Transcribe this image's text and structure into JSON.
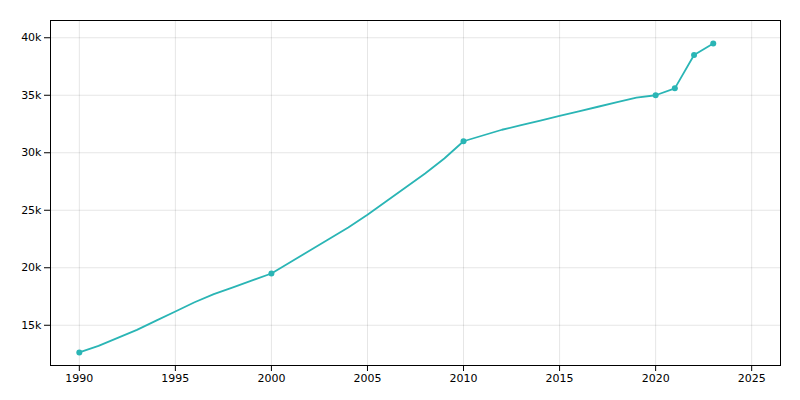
{
  "chart_data": {
    "type": "line",
    "series": [
      {
        "type": "line",
        "color": "#2ab5b5",
        "x": [
          1990,
          1991,
          1992,
          1993,
          1994,
          1995,
          1996,
          1997,
          1998,
          1999,
          2000,
          2001,
          2002,
          2003,
          2004,
          2005,
          2006,
          2007,
          2008,
          2009,
          2010,
          2011,
          2012,
          2013,
          2014,
          2015,
          2016,
          2017,
          2018,
          2019,
          2020,
          2021,
          2022,
          2023
        ],
        "values": [
          12640,
          13200,
          13900,
          14600,
          15400,
          16200,
          17000,
          17700,
          18300,
          18900,
          19500,
          20500,
          21500,
          22500,
          23500,
          24600,
          25800,
          27000,
          28200,
          29500,
          31000,
          31500,
          32000,
          32400,
          32800,
          33200,
          33600,
          34000,
          34400,
          34800,
          35000,
          35600,
          38500,
          39500
        ]
      },
      {
        "type": "scatter",
        "color": "#2ab5b5",
        "marker": "circle",
        "x": [
          1990,
          2000,
          2010,
          2020,
          2021,
          2022,
          2023
        ],
        "values": [
          12640,
          19500,
          31000,
          35000,
          35600,
          38500,
          39500
        ]
      }
    ],
    "xlim": [
      1988.5,
      2026.5
    ],
    "ylim": [
      11500,
      41500
    ],
    "xticks": [
      1990,
      1995,
      2000,
      2005,
      2010,
      2015,
      2020,
      2025
    ],
    "yticks": [
      {
        "value": 15000,
        "label": "15k"
      },
      {
        "value": 20000,
        "label": "20k"
      },
      {
        "value": 25000,
        "label": "25k"
      },
      {
        "value": 30000,
        "label": "30k"
      },
      {
        "value": 35000,
        "label": "35k"
      },
      {
        "value": 40000,
        "label": "40k"
      }
    ],
    "grid": true
  }
}
